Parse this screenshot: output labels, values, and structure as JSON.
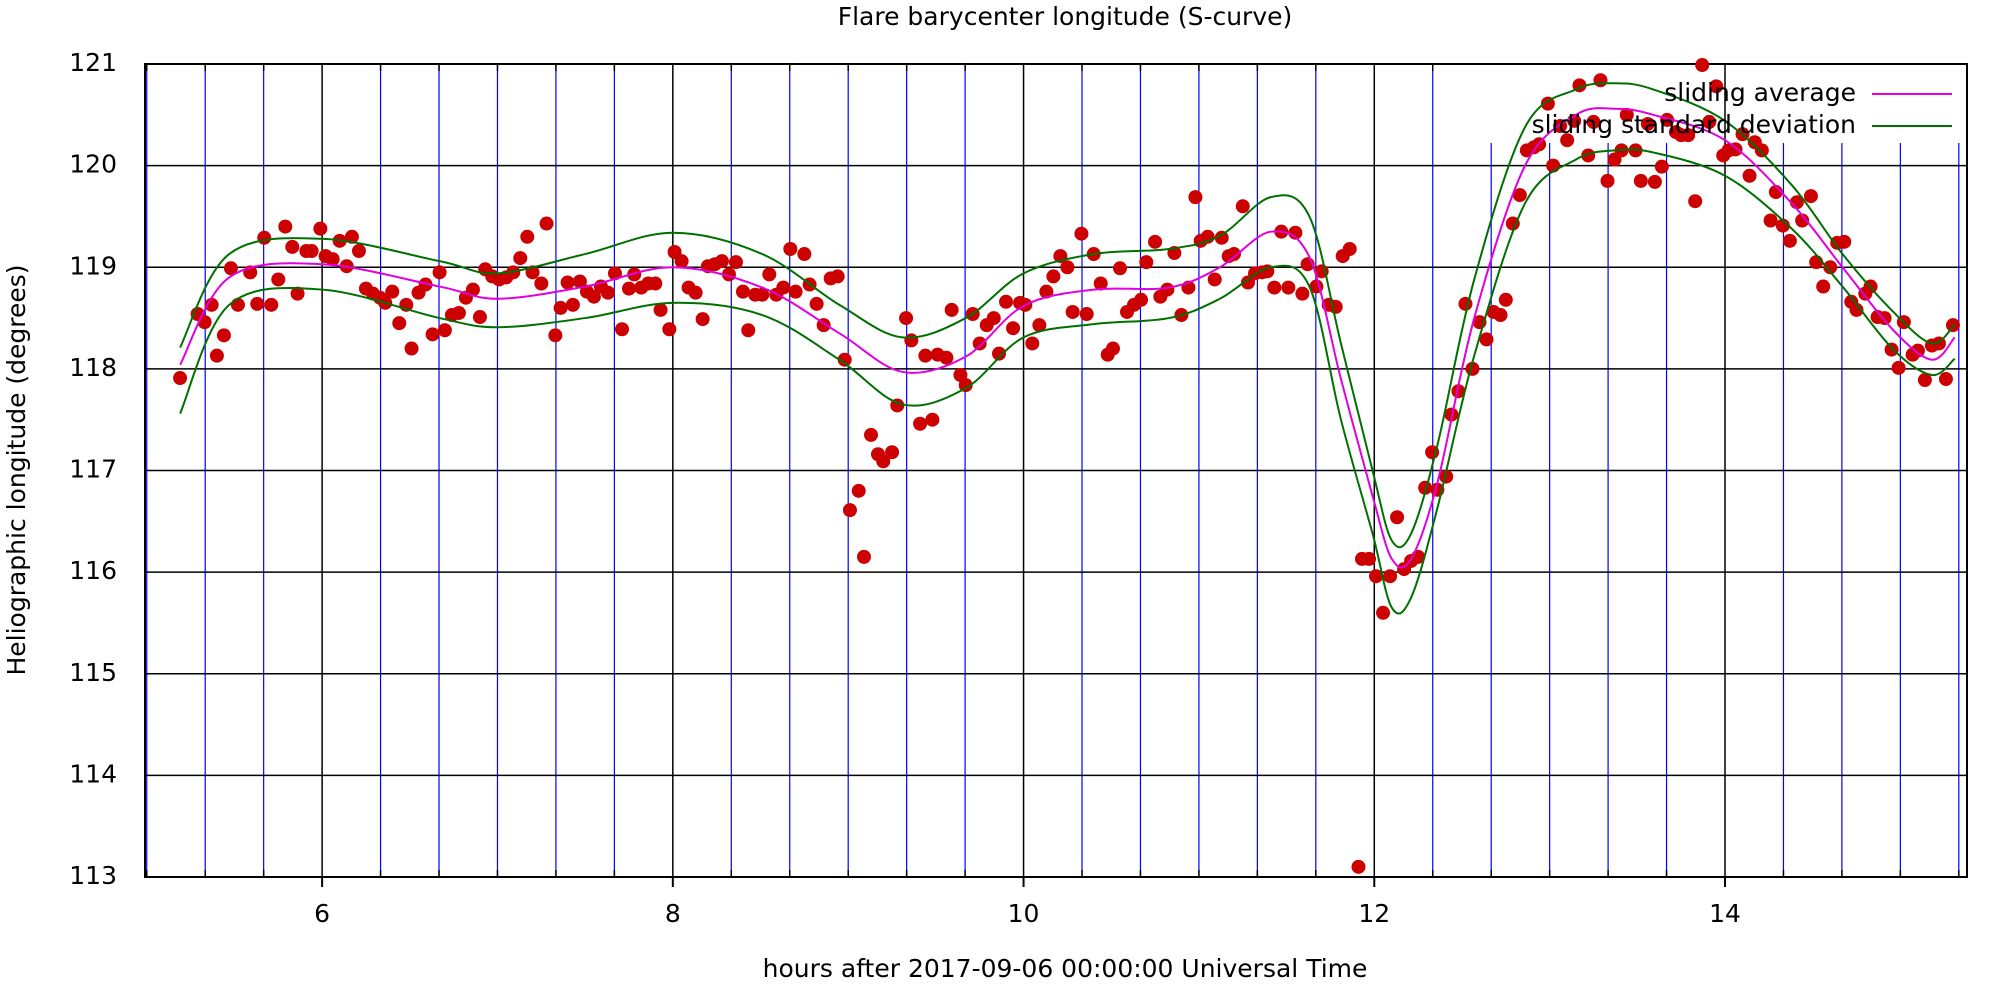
{
  "chart_data": {
    "type": "scatter",
    "title": "Flare barycenter longitude (S-curve)",
    "x_label": "hours after 2017-09-06 00:00:00 Universal Time",
    "y_label": "Heliographic longitude (degrees)",
    "xlim": [
      4.99,
      15.38
    ],
    "ylim": [
      113,
      121
    ],
    "xticks": [
      6,
      8,
      10,
      12,
      14
    ],
    "yticks": [
      113,
      114,
      115,
      116,
      117,
      118,
      119,
      120,
      121
    ],
    "grid": true,
    "minor_per_major": 6,
    "minor_grid_color": "#0000ff",
    "legend": "top-right",
    "points": {
      "color": "#cc0000",
      "x": [
        5.19,
        5.29,
        5.33,
        5.37,
        5.4,
        5.44,
        5.48,
        5.52,
        5.59,
        5.63,
        5.67,
        5.71,
        5.75,
        5.79,
        5.83,
        5.86,
        5.91,
        5.94,
        5.99,
        6.02,
        6.06,
        6.1,
        6.14,
        6.17,
        6.21,
        6.25,
        6.29,
        6.33,
        6.36,
        6.4,
        6.44,
        6.48,
        6.51,
        6.55,
        6.59,
        6.63,
        6.67,
        6.7,
        6.74,
        6.78,
        6.82,
        6.86,
        6.9,
        6.93,
        6.97,
        7.01,
        7.05,
        7.09,
        7.13,
        7.17,
        7.2,
        7.25,
        7.28,
        7.33,
        7.36,
        7.4,
        7.43,
        7.47,
        7.51,
        7.55,
        7.59,
        7.63,
        7.67,
        7.71,
        7.75,
        7.78,
        7.82,
        7.86,
        7.9,
        7.93,
        7.98,
        8.01,
        8.05,
        8.09,
        8.13,
        8.17,
        8.2,
        8.24,
        8.28,
        8.32,
        8.36,
        8.4,
        8.43,
        8.47,
        8.51,
        8.55,
        8.59,
        8.63,
        8.67,
        8.7,
        8.75,
        8.78,
        8.82,
        8.86,
        8.9,
        8.94,
        8.98,
        9.01,
        9.06,
        9.09,
        9.13,
        9.17,
        9.2,
        9.25,
        9.28,
        9.33,
        9.36,
        9.41,
        9.44,
        9.48,
        9.51,
        9.56,
        9.59,
        9.64,
        9.67,
        9.71,
        9.75,
        9.79,
        9.83,
        9.86,
        9.9,
        9.94,
        9.98,
        10.01,
        10.05,
        10.09,
        10.13,
        10.17,
        10.21,
        10.25,
        10.28,
        10.33,
        10.36,
        10.4,
        10.44,
        10.48,
        10.51,
        10.55,
        10.59,
        10.63,
        10.67,
        10.7,
        10.75,
        10.78,
        10.82,
        10.86,
        10.9,
        10.94,
        10.98,
        11.01,
        11.05,
        11.09,
        11.13,
        11.17,
        11.2,
        11.25,
        11.28,
        11.32,
        11.36,
        11.39,
        11.43,
        11.47,
        11.51,
        11.55,
        11.59,
        11.62,
        11.67,
        11.7,
        11.74,
        11.78,
        11.82,
        11.86,
        11.91,
        11.93,
        11.97,
        12.01,
        12.05,
        12.09,
        12.13,
        12.17,
        12.21,
        12.25,
        12.29,
        12.33,
        12.36,
        12.41,
        12.44,
        12.48,
        12.52,
        12.56,
        12.6,
        12.64,
        12.68,
        12.72,
        12.75,
        12.79,
        12.83,
        12.87,
        12.91,
        12.94,
        12.99,
        13.02,
        13.06,
        13.1,
        13.14,
        13.17,
        13.22,
        13.25,
        13.29,
        13.33,
        13.37,
        13.41,
        13.44,
        13.49,
        13.52,
        13.56,
        13.6,
        13.64,
        13.67,
        13.72,
        13.75,
        13.79,
        13.83,
        13.87,
        13.91,
        13.95,
        13.99,
        14.02,
        14.06,
        14.1,
        14.14,
        14.17,
        14.21,
        14.26,
        14.29,
        14.33,
        14.37,
        14.41,
        14.44,
        14.49,
        14.52,
        14.56,
        14.6,
        14.64,
        14.68,
        14.72,
        14.75,
        14.8,
        14.83,
        14.87,
        14.91,
        14.95,
        14.99,
        15.02,
        15.07,
        15.1,
        15.14,
        15.18,
        15.22,
        15.26,
        15.3
      ],
      "values": [
        117.91,
        118.54,
        118.46,
        118.63,
        118.13,
        118.33,
        118.99,
        118.63,
        118.95,
        118.64,
        119.29,
        118.63,
        118.88,
        119.4,
        119.2,
        118.74,
        119.16,
        119.16,
        119.38,
        119.11,
        119.08,
        119.26,
        119.01,
        119.3,
        119.16,
        118.79,
        118.74,
        118.7,
        118.65,
        118.76,
        118.45,
        118.63,
        118.2,
        118.75,
        118.83,
        118.34,
        118.95,
        118.38,
        118.53,
        118.55,
        118.7,
        118.78,
        118.51,
        118.98,
        118.91,
        118.88,
        118.9,
        118.95,
        119.09,
        119.3,
        118.95,
        118.84,
        119.43,
        118.33,
        118.6,
        118.85,
        118.63,
        118.86,
        118.76,
        118.71,
        118.81,
        118.75,
        118.94,
        118.39,
        118.79,
        118.93,
        118.8,
        118.84,
        118.84,
        118.58,
        118.39,
        119.15,
        119.06,
        118.8,
        118.75,
        118.49,
        119.01,
        119.03,
        119.06,
        118.93,
        119.05,
        118.76,
        118.38,
        118.73,
        118.73,
        118.93,
        118.73,
        118.8,
        119.18,
        118.76,
        119.13,
        118.83,
        118.64,
        118.43,
        118.89,
        118.91,
        118.09,
        116.61,
        116.8,
        116.15,
        117.35,
        117.16,
        117.09,
        117.18,
        117.64,
        118.5,
        118.28,
        117.46,
        118.13,
        117.5,
        118.14,
        118.11,
        118.58,
        117.94,
        117.84,
        118.54,
        118.25,
        118.43,
        118.5,
        118.15,
        118.66,
        118.4,
        118.65,
        118.63,
        118.25,
        118.43,
        118.76,
        118.91,
        119.11,
        119.0,
        118.56,
        119.33,
        118.54,
        119.13,
        118.84,
        118.14,
        118.2,
        118.99,
        118.56,
        118.63,
        118.68,
        119.05,
        119.25,
        118.71,
        118.78,
        119.14,
        118.53,
        118.8,
        119.69,
        119.26,
        119.3,
        118.88,
        119.29,
        119.11,
        119.13,
        119.6,
        118.85,
        118.94,
        118.95,
        118.96,
        118.8,
        119.35,
        118.8,
        119.34,
        118.74,
        119.03,
        118.81,
        118.96,
        118.63,
        118.61,
        119.11,
        119.18,
        113.1,
        116.13,
        116.13,
        115.96,
        115.6,
        115.96,
        116.54,
        116.03,
        116.11,
        116.15,
        116.83,
        117.18,
        116.81,
        116.94,
        117.55,
        117.78,
        118.64,
        118.0,
        118.46,
        118.29,
        118.56,
        118.53,
        118.68,
        119.43,
        119.71,
        120.15,
        120.18,
        120.21,
        120.61,
        120.0,
        120.39,
        120.25,
        120.44,
        120.79,
        120.1,
        120.43,
        120.84,
        119.85,
        120.06,
        120.15,
        120.5,
        120.15,
        119.85,
        120.41,
        119.84,
        119.99,
        120.45,
        120.33,
        120.3,
        120.3,
        119.65,
        120.99,
        120.43,
        120.78,
        120.1,
        120.15,
        120.16,
        120.31,
        119.9,
        120.23,
        120.15,
        119.46,
        119.74,
        119.41,
        119.26,
        119.64,
        119.46,
        119.7,
        119.05,
        118.81,
        119.0,
        119.24,
        119.25,
        118.66,
        118.58,
        118.74,
        118.81,
        118.51,
        118.5,
        118.19,
        118.01,
        118.46,
        118.14,
        118.18,
        117.89,
        118.23,
        118.25,
        117.9,
        118.43
      ]
    },
    "series": [
      {
        "name": "sliding average",
        "color": "#e000e0",
        "x": [
          5.19,
          5.47,
          6.0,
          6.67,
          7.0,
          7.5,
          8.0,
          8.51,
          8.95,
          9.31,
          9.67,
          10.0,
          10.4,
          10.83,
          11.12,
          11.41,
          11.63,
          11.81,
          11.99,
          12.1,
          12.21,
          12.36,
          12.57,
          12.86,
          13.15,
          13.37,
          13.59,
          14.0,
          14.38,
          14.67,
          14.96,
          15.18,
          15.31
        ],
        "values": [
          118.04,
          118.9,
          119.03,
          118.81,
          118.69,
          118.81,
          119.0,
          118.8,
          118.35,
          117.97,
          118.12,
          118.62,
          118.78,
          118.8,
          119.0,
          119.35,
          119.1,
          117.9,
          116.75,
          116.13,
          116.13,
          116.88,
          118.5,
          120.0,
          120.5,
          120.56,
          120.5,
          120.25,
          119.63,
          119.0,
          118.38,
          118.09,
          118.31
        ]
      },
      {
        "name": "sliding standard deviation",
        "color": "#007000",
        "x": [
          5.19,
          5.47,
          6.0,
          6.67,
          7.0,
          7.5,
          8.0,
          8.51,
          8.95,
          9.31,
          9.67,
          10.0,
          10.4,
          10.83,
          11.12,
          11.41,
          11.63,
          11.81,
          11.99,
          12.1,
          12.21,
          12.36,
          12.57,
          12.86,
          13.15,
          13.37,
          13.59,
          14.0,
          14.38,
          14.67,
          14.96,
          15.18,
          15.31
        ],
        "values": [
          118.21,
          119.13,
          119.28,
          119.06,
          118.94,
          119.13,
          119.34,
          119.13,
          118.63,
          118.31,
          118.5,
          118.94,
          119.13,
          119.18,
          119.31,
          119.69,
          119.5,
          118.25,
          117.0,
          116.31,
          116.38,
          117.25,
          118.88,
          120.38,
          120.75,
          120.81,
          120.75,
          120.44,
          119.81,
          119.13,
          118.56,
          118.25,
          118.44
        ]
      },
      {
        "color": "#007000",
        "x": [
          5.19,
          5.47,
          6.0,
          6.67,
          7.0,
          7.5,
          8.0,
          8.51,
          8.95,
          9.31,
          9.67,
          10.0,
          10.4,
          10.83,
          11.12,
          11.41,
          11.63,
          11.81,
          11.99,
          12.1,
          12.21,
          12.36,
          12.57,
          12.86,
          13.15,
          13.37,
          13.59,
          14.0,
          14.38,
          14.67,
          14.96,
          15.18,
          15.31
        ],
        "values": [
          117.56,
          118.63,
          118.78,
          118.5,
          118.41,
          118.5,
          118.65,
          118.53,
          118.09,
          117.65,
          117.81,
          118.31,
          118.44,
          118.5,
          118.69,
          119.0,
          118.81,
          117.5,
          116.38,
          115.65,
          115.75,
          116.63,
          118.13,
          119.63,
          120.06,
          120.15,
          120.13,
          119.9,
          119.38,
          118.81,
          118.19,
          117.94,
          118.1
        ]
      }
    ]
  }
}
